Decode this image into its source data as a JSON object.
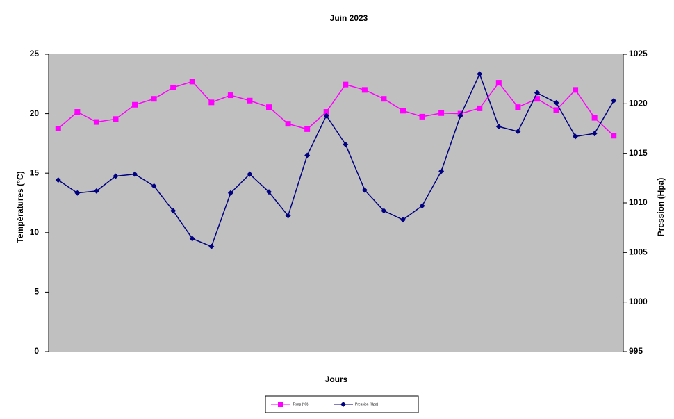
{
  "chart_data": {
    "type": "line",
    "title": "Juin 2023",
    "x_label": "Jours",
    "y_label": "Températures (°C)",
    "y2_label": "Pression (Hpa)",
    "categories": [
      null,
      null,
      null,
      null,
      null,
      null,
      null,
      null,
      null,
      null,
      null,
      null,
      null,
      null,
      null,
      null,
      null,
      null,
      null,
      null,
      null,
      null,
      null,
      null,
      null,
      null,
      null,
      null,
      null,
      null
    ],
    "ylim": [
      0,
      25
    ],
    "yticks": [
      0,
      5,
      10,
      15,
      20,
      25
    ],
    "y2lim": [
      995,
      1025
    ],
    "y2ticks": [
      995,
      1000,
      1005,
      1010,
      1015,
      1020,
      1025
    ],
    "plot_background": "#c0c0c0",
    "grid": false,
    "legend": "bottom",
    "series": [
      {
        "name": "Temp (°C)",
        "color": "#ff00ff",
        "marker": "square",
        "values": [
          18.75,
          20.15,
          19.3,
          19.55,
          20.75,
          21.25,
          22.2,
          22.7,
          20.95,
          21.55,
          21.1,
          20.55,
          19.15,
          18.7,
          20.15,
          22.45,
          22.0,
          21.25,
          20.25,
          19.75,
          20.05,
          20.0,
          20.45,
          22.6,
          20.55,
          21.25,
          20.3,
          22.0,
          19.65,
          18.15
        ]
      },
      {
        "name": "Pression (Hpa)",
        "color": "#000080",
        "marker": "diamond",
        "axis": "y2",
        "values": [
          1012.3,
          1011.0,
          1011.2,
          1012.7,
          1012.9,
          1011.7,
          1009.2,
          1006.4,
          1005.6,
          1011.0,
          1012.9,
          1011.1,
          1008.7,
          1014.8,
          1018.8,
          1015.9,
          1011.3,
          1009.2,
          1008.3,
          1009.7,
          1013.2,
          1018.8,
          1023.0,
          1017.7,
          1017.2,
          1021.1,
          1020.1,
          1016.7,
          1017.0,
          1020.3
        ]
      }
    ]
  }
}
